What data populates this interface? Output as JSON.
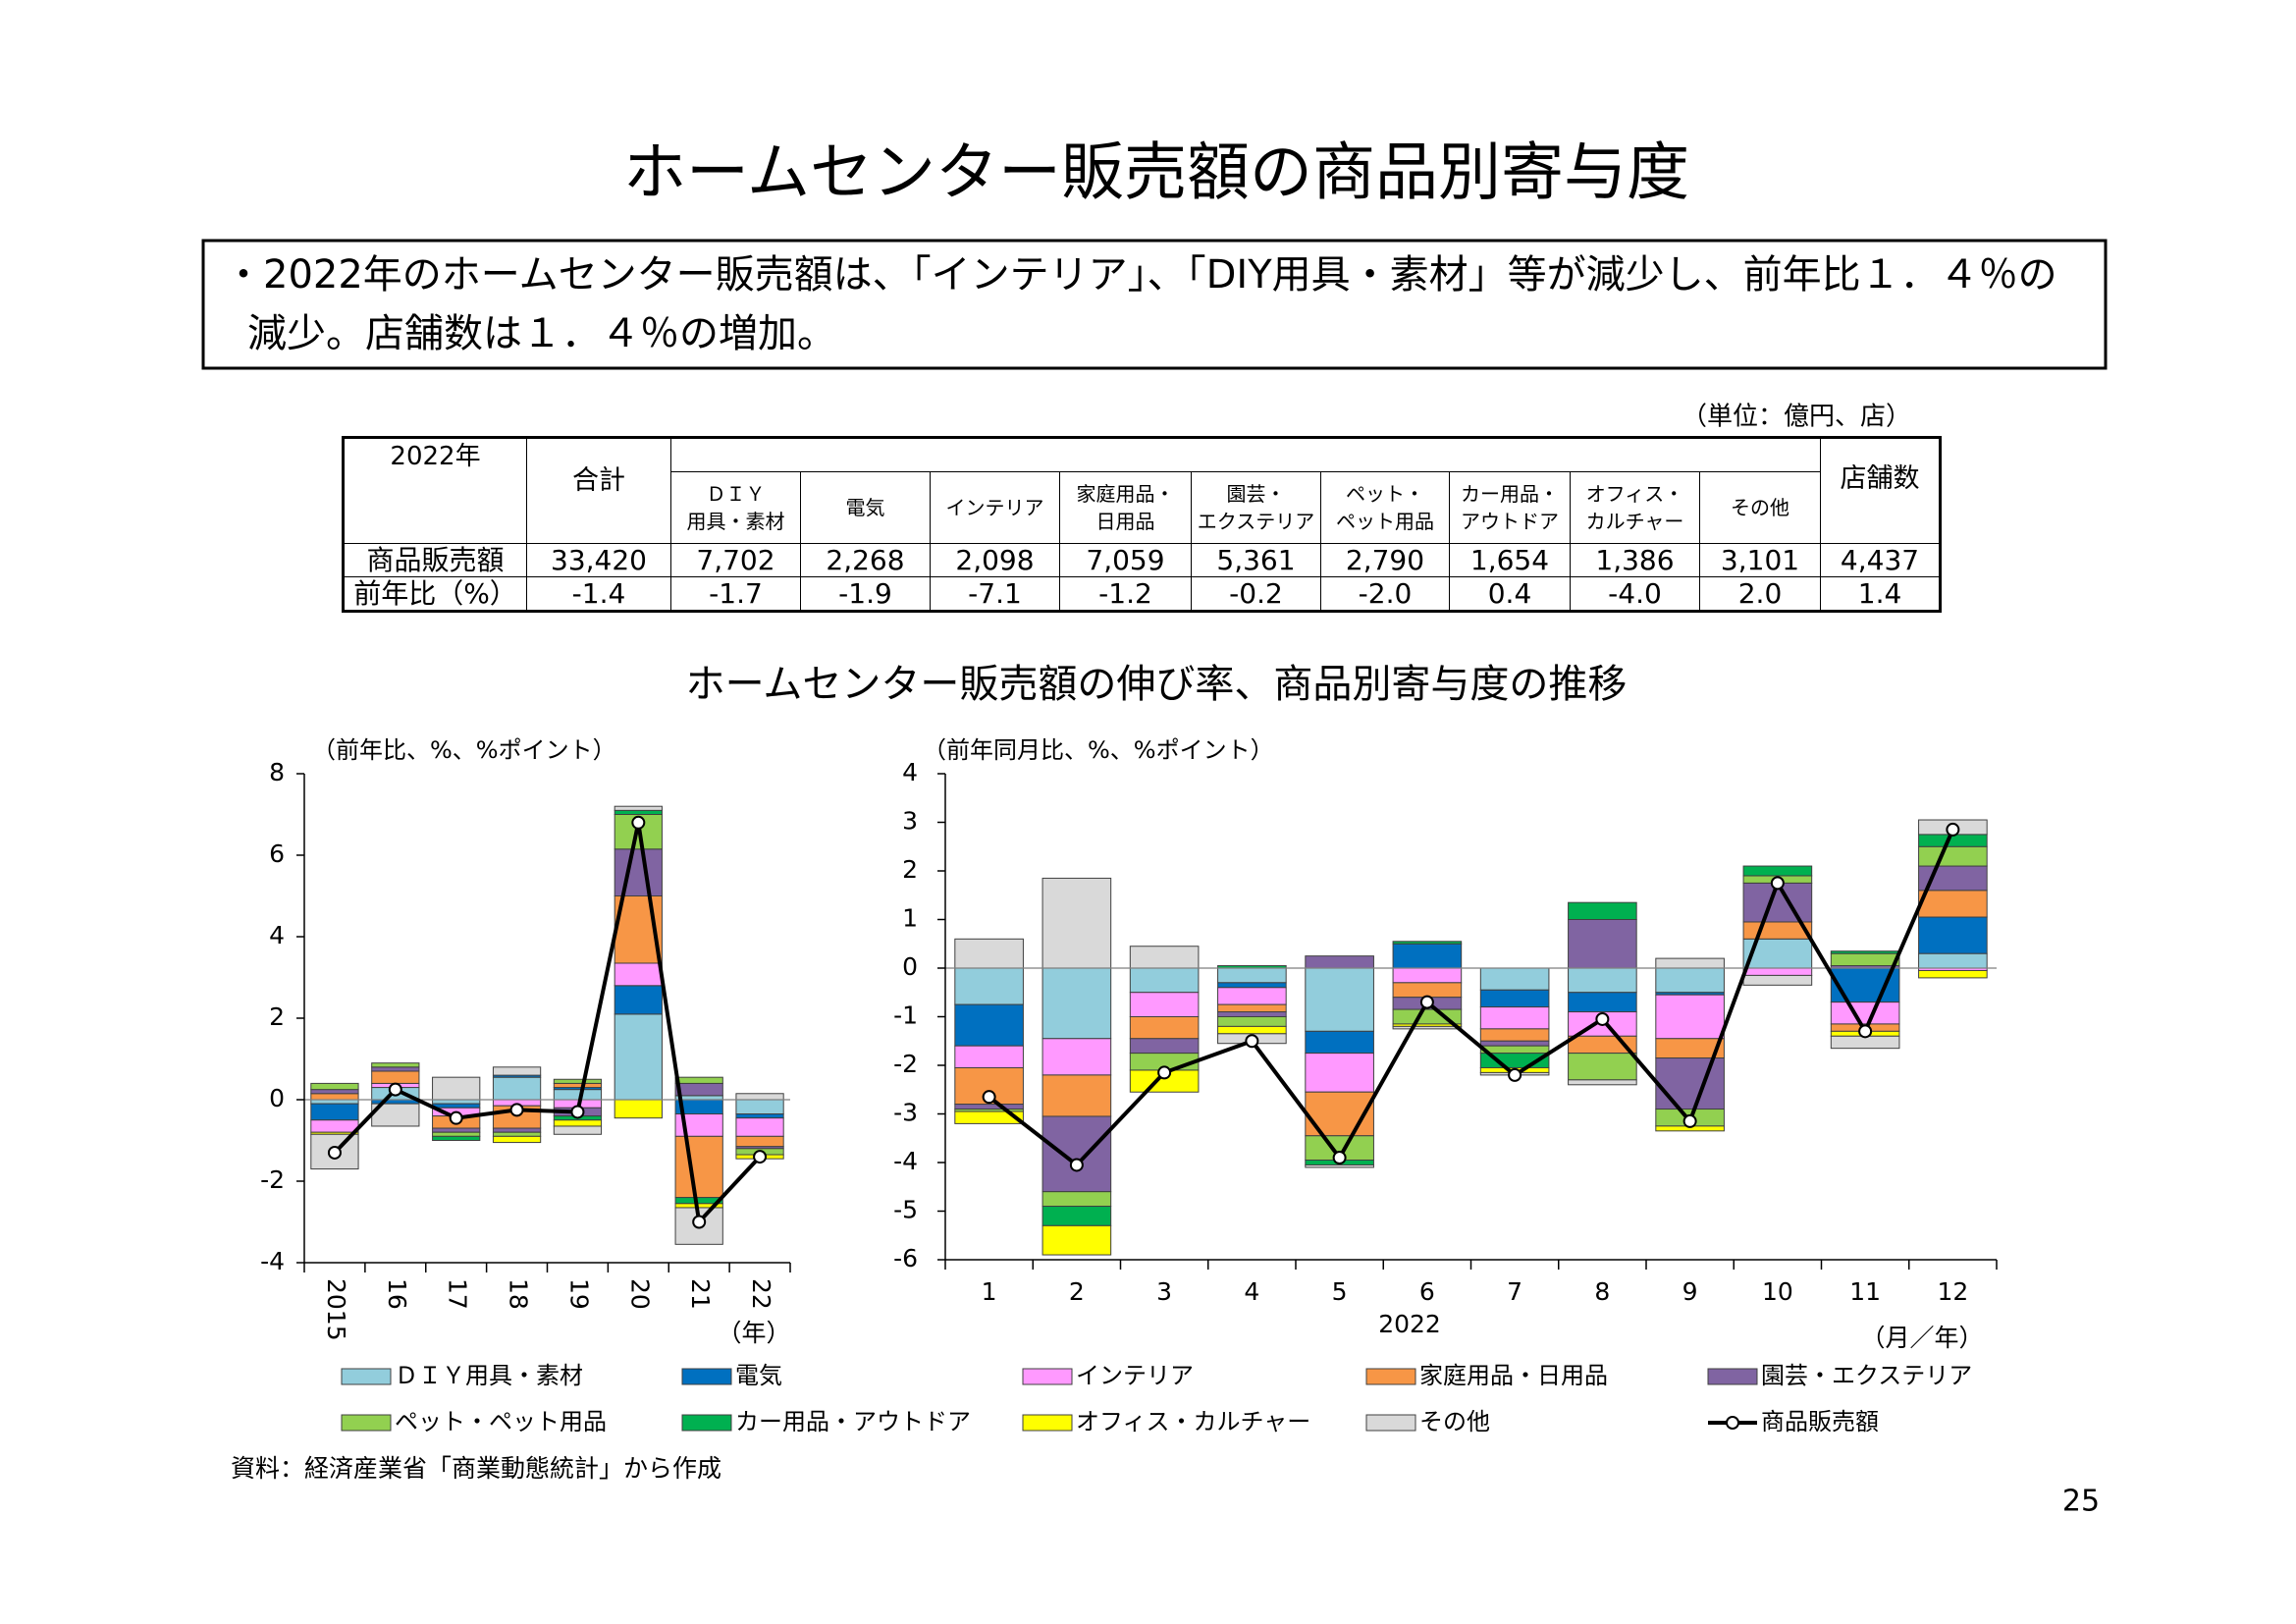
{
  "header": {
    "title": "ホームセンター販売額の商品別寄与度"
  },
  "summary": [
    "・2022年のホームセンター販売額は、「インテリア」、「DIY用具・素材」等が減少し、前年比１．４％の",
    "減少。店舗数は１．４％の増加。"
  ],
  "table": {
    "unit": "（単位：億円、店）",
    "corner": "2022年",
    "columns": [
      [
        "合計"
      ],
      [
        "ＤＩＹ",
        "用具・素材"
      ],
      [
        "電気"
      ],
      [
        "インテリア"
      ],
      [
        "家庭用品・",
        "日用品"
      ],
      [
        "園芸・",
        "エクステリア"
      ],
      [
        "ペット・",
        "ペット用品"
      ],
      [
        "カー用品・",
        "アウトドア"
      ],
      [
        "オフィス・",
        "カルチャー"
      ],
      [
        "その他"
      ],
      [
        "店舗数"
      ]
    ],
    "rows": [
      {
        "label": "商品販売額",
        "cells": [
          "33,420",
          "7,702",
          "2,268",
          "2,098",
          "7,059",
          "5,361",
          "2,790",
          "1,654",
          "1,386",
          "3,101",
          "4,437"
        ]
      },
      {
        "label": "前年比（%）",
        "cells": [
          "-1.4",
          "-1.7",
          "-1.9",
          "-7.1",
          "-1.2",
          "-0.2",
          "-2.0",
          "0.4",
          "-4.0",
          "2.0",
          "1.4"
        ]
      }
    ]
  },
  "section_title": "ホームセンター販売額の伸び率、商品別寄与度の推移",
  "chart_data": [
    {
      "type": "bar",
      "stacked": true,
      "axis_note": "（前年比、%、%ポイント）",
      "x_unit": "（年）",
      "categories": [
        "2015",
        "16",
        "17",
        "18",
        "19",
        "20",
        "21",
        "22"
      ],
      "ylim": [
        -4,
        8
      ],
      "yticks": [
        -4,
        -2,
        0,
        2,
        4,
        6,
        8
      ],
      "series": [
        {
          "name": "ＤＩＹ用具・素材",
          "color": "#92cddc",
          "values": [
            -0.1,
            0.3,
            -0.1,
            0.55,
            0.25,
            2.1,
            0.1,
            -0.35
          ]
        },
        {
          "name": "電気",
          "color": "#0070c0",
          "values": [
            -0.4,
            -0.1,
            -0.1,
            0.05,
            0.05,
            0.7,
            -0.35,
            -0.1
          ]
        },
        {
          "name": "インテリア",
          "color": "#ff99ff",
          "values": [
            -0.3,
            0.1,
            -0.2,
            -0.15,
            -0.2,
            0.55,
            -0.55,
            -0.45
          ]
        },
        {
          "name": "家庭用品・日用品",
          "color": "#f79646",
          "values": [
            0.15,
            0.3,
            -0.3,
            -0.55,
            0.1,
            1.65,
            -1.5,
            -0.25
          ]
        },
        {
          "name": "園芸・エクステリア",
          "color": "#8064a2",
          "values": [
            0.1,
            0.1,
            -0.1,
            -0.1,
            -0.2,
            1.15,
            0.3,
            -0.05
          ]
        },
        {
          "name": "ペット・ペット用品",
          "color": "#92d050",
          "values": [
            0.15,
            0.1,
            -0.1,
            -0.1,
            0.1,
            0.85,
            0.15,
            -0.15
          ]
        },
        {
          "name": "カー用品・アウトドア",
          "color": "#00b050",
          "values": [
            0,
            0,
            -0.1,
            0,
            -0.1,
            0.1,
            -0.15,
            0
          ]
        },
        {
          "name": "オフィス・カルチャー",
          "color": "#ffff00",
          "values": [
            -0.05,
            0,
            0,
            -0.15,
            -0.15,
            -0.45,
            -0.1,
            -0.1
          ]
        },
        {
          "name": "その他",
          "color": "#d9d9d9",
          "values": [
            -0.85,
            -0.55,
            0.55,
            0.2,
            -0.2,
            0.1,
            -0.9,
            0.15
          ]
        },
        {
          "name": "商品販売額",
          "type": "line",
          "color": "#000000",
          "values": [
            -1.3,
            0.25,
            -0.45,
            -0.25,
            -0.3,
            6.8,
            -3.0,
            -1.4
          ]
        }
      ]
    },
    {
      "type": "bar",
      "stacked": true,
      "axis_note": "（前年同月比、%、%ポイント）",
      "x_label": "2022",
      "x_unit": "（月／年）",
      "categories": [
        "1",
        "2",
        "3",
        "4",
        "5",
        "6",
        "7",
        "8",
        "9",
        "10",
        "11",
        "12"
      ],
      "ylim": [
        -6,
        4
      ],
      "yticks": [
        -6,
        -5,
        -4,
        -3,
        -2,
        -1,
        0,
        1,
        2,
        3,
        4
      ],
      "series": [
        {
          "values": [
            -0.75,
            -1.45,
            -0.5,
            -0.3,
            -1.3,
            0,
            -0.45,
            -0.5,
            -0.5,
            0.6,
            0,
            0.3
          ]
        },
        {
          "values": [
            -0.85,
            0,
            0,
            -0.1,
            -0.45,
            0.5,
            -0.35,
            -0.4,
            -0.05,
            0,
            -0.7,
            0.75
          ]
        },
        {
          "values": [
            -0.45,
            -0.75,
            -0.5,
            -0.35,
            -0.8,
            -0.3,
            -0.45,
            -0.5,
            -0.9,
            -0.15,
            -0.45,
            -0.05
          ]
        },
        {
          "values": [
            -0.75,
            -0.85,
            -0.45,
            -0.15,
            -0.9,
            -0.3,
            -0.25,
            -0.35,
            -0.4,
            0.35,
            -0.15,
            0.55
          ]
        },
        {
          "values": [
            -0.1,
            -1.55,
            -0.3,
            -0.1,
            0.25,
            -0.25,
            -0.1,
            1.0,
            -1.05,
            0.8,
            0.05,
            0.5
          ]
        },
        {
          "values": [
            -0.05,
            -0.3,
            -0.35,
            -0.2,
            -0.5,
            -0.3,
            -0.15,
            -0.55,
            -0.35,
            0.15,
            0.25,
            0.4
          ]
        },
        {
          "values": [
            0,
            -0.4,
            0,
            0.05,
            -0.1,
            0.05,
            -0.3,
            0.35,
            0,
            0.2,
            0.05,
            0.25
          ]
        },
        {
          "values": [
            -0.25,
            -0.6,
            -0.45,
            -0.15,
            0,
            -0.05,
            -0.1,
            0,
            -0.1,
            0,
            -0.1,
            -0.15
          ]
        },
        {
          "values": [
            0.6,
            1.85,
            0.45,
            -0.2,
            -0.05,
            -0.05,
            -0.05,
            -0.1,
            0.2,
            -0.2,
            -0.25,
            0.3
          ]
        },
        {
          "type": "line",
          "values": [
            -2.65,
            -4.05,
            -2.15,
            -1.5,
            -3.9,
            -0.7,
            -2.2,
            -1.05,
            -3.15,
            1.75,
            -1.3,
            2.85
          ]
        }
      ]
    }
  ],
  "source": "資料：経済産業省「商業動態統計」から作成",
  "page_number": "25"
}
